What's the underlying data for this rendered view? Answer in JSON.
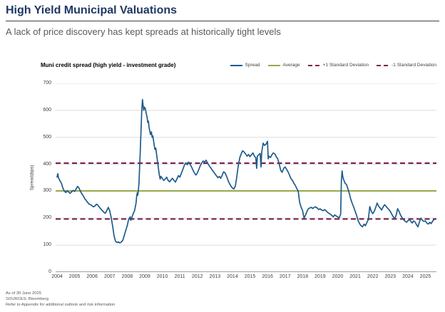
{
  "page": {
    "title": "High Yield Municipal Valuations",
    "subtitle": "A lack of price discovery has kept spreads at historically tight levels"
  },
  "colors": {
    "title_navy": "#1F3864",
    "spread_blue": "#1F5C8B",
    "average_green": "#97A94E",
    "std_dev_maroon": "#7C1E4E",
    "gridline": "#DEDEDE",
    "axis_line": "#9E9E9E",
    "tick_text": "#404040"
  },
  "footer": {
    "as_of": "As of 30 June 2025",
    "sources": "SOURCES: Bloomberg",
    "disclaimer": "Refer to Appendix for additional outlook and risk information"
  },
  "chart_data": {
    "type": "line",
    "title": "Muni credit spread (high yield - investment grade)",
    "xlabel": "",
    "ylabel": "Spread(bps)",
    "xlim": [
      2004,
      2025.55
    ],
    "ylim": [
      0,
      700
    ],
    "yticks": [
      0,
      100,
      200,
      300,
      400,
      500,
      600,
      700
    ],
    "xticks": [
      2004,
      2005,
      2006,
      2007,
      2008,
      2009,
      2010,
      2011,
      2012,
      2013,
      2014,
      2015,
      2016,
      2017,
      2018,
      2019,
      2020,
      2021,
      2022,
      2023,
      2024,
      2025
    ],
    "grid": true,
    "legend_position": "top-right",
    "legend": [
      {
        "label": "Spread",
        "color": "#1F5C8B",
        "style": "solid"
      },
      {
        "label": "Average",
        "color": "#97A94E",
        "style": "solid"
      },
      {
        "label": "+1 Standard Deviation",
        "color": "#7C1E4E",
        "style": "dashed"
      },
      {
        "label": "-1 Standard Deviation",
        "color": "#7C1E4E",
        "style": "dashed"
      }
    ],
    "reference_lines": {
      "average": 301,
      "plus_1_sd": 404,
      "minus_1_sd": 197
    },
    "series": [
      {
        "name": "Average",
        "color": "#97A94E",
        "style": "solid",
        "width": 2,
        "value": 301
      },
      {
        "name": "+1 Standard Deviation",
        "color": "#7C1E4E",
        "style": "dashed",
        "width": 2.2,
        "value": 404
      },
      {
        "name": "-1 Standard Deviation",
        "color": "#7C1E4E",
        "style": "dashed",
        "width": 2.2,
        "value": 197
      },
      {
        "name": "Spread",
        "color": "#1F5C8B",
        "style": "solid",
        "width": 1.7,
        "points": [
          [
            2004.0,
            352
          ],
          [
            2004.04,
            365
          ],
          [
            2004.08,
            350
          ],
          [
            2004.17,
            338
          ],
          [
            2004.25,
            330
          ],
          [
            2004.33,
            312
          ],
          [
            2004.42,
            300
          ],
          [
            2004.5,
            295
          ],
          [
            2004.58,
            302
          ],
          [
            2004.67,
            296
          ],
          [
            2004.75,
            292
          ],
          [
            2004.83,
            298
          ],
          [
            2004.92,
            303
          ],
          [
            2005.0,
            299
          ],
          [
            2005.08,
            308
          ],
          [
            2005.17,
            318
          ],
          [
            2005.25,
            312
          ],
          [
            2005.33,
            300
          ],
          [
            2005.42,
            290
          ],
          [
            2005.5,
            282
          ],
          [
            2005.58,
            272
          ],
          [
            2005.67,
            265
          ],
          [
            2005.75,
            258
          ],
          [
            2005.83,
            252
          ],
          [
            2005.92,
            250
          ],
          [
            2006.0,
            246
          ],
          [
            2006.08,
            242
          ],
          [
            2006.17,
            246
          ],
          [
            2006.25,
            252
          ],
          [
            2006.33,
            248
          ],
          [
            2006.42,
            240
          ],
          [
            2006.5,
            234
          ],
          [
            2006.58,
            228
          ],
          [
            2006.67,
            222
          ],
          [
            2006.75,
            218
          ],
          [
            2006.83,
            228
          ],
          [
            2006.92,
            240
          ],
          [
            2007.0,
            228
          ],
          [
            2007.08,
            205
          ],
          [
            2007.17,
            170
          ],
          [
            2007.25,
            135
          ],
          [
            2007.33,
            115
          ],
          [
            2007.42,
            110
          ],
          [
            2007.5,
            112
          ],
          [
            2007.58,
            108
          ],
          [
            2007.67,
            112
          ],
          [
            2007.75,
            118
          ],
          [
            2007.83,
            135
          ],
          [
            2007.92,
            155
          ],
          [
            2008.0,
            172
          ],
          [
            2008.08,
            195
          ],
          [
            2008.17,
            205
          ],
          [
            2008.21,
            192
          ],
          [
            2008.25,
            200
          ],
          [
            2008.33,
            215
          ],
          [
            2008.42,
            228
          ],
          [
            2008.5,
            255
          ],
          [
            2008.54,
            282
          ],
          [
            2008.58,
            295
          ],
          [
            2008.6,
            285
          ],
          [
            2008.63,
            300
          ],
          [
            2008.67,
            330
          ],
          [
            2008.71,
            390
          ],
          [
            2008.75,
            455
          ],
          [
            2008.79,
            530
          ],
          [
            2008.83,
            600
          ],
          [
            2008.87,
            640
          ],
          [
            2008.9,
            622
          ],
          [
            2008.94,
            600
          ],
          [
            2008.98,
            612
          ],
          [
            2009.04,
            605
          ],
          [
            2009.08,
            590
          ],
          [
            2009.13,
            575
          ],
          [
            2009.17,
            555
          ],
          [
            2009.21,
            560
          ],
          [
            2009.25,
            535
          ],
          [
            2009.33,
            510
          ],
          [
            2009.38,
            520
          ],
          [
            2009.42,
            500
          ],
          [
            2009.46,
            505
          ],
          [
            2009.5,
            488
          ],
          [
            2009.54,
            470
          ],
          [
            2009.58,
            455
          ],
          [
            2009.63,
            460
          ],
          [
            2009.67,
            440
          ],
          [
            2009.75,
            400
          ],
          [
            2009.79,
            380
          ],
          [
            2009.83,
            360
          ],
          [
            2009.88,
            345
          ],
          [
            2009.92,
            355
          ],
          [
            2010.0,
            348
          ],
          [
            2010.08,
            340
          ],
          [
            2010.17,
            345
          ],
          [
            2010.25,
            352
          ],
          [
            2010.33,
            340
          ],
          [
            2010.42,
            335
          ],
          [
            2010.5,
            342
          ],
          [
            2010.58,
            348
          ],
          [
            2010.67,
            340
          ],
          [
            2010.75,
            334
          ],
          [
            2010.83,
            345
          ],
          [
            2010.92,
            358
          ],
          [
            2011.0,
            352
          ],
          [
            2011.08,
            365
          ],
          [
            2011.17,
            380
          ],
          [
            2011.25,
            395
          ],
          [
            2011.33,
            405
          ],
          [
            2011.42,
            398
          ],
          [
            2011.5,
            408
          ],
          [
            2011.58,
            400
          ],
          [
            2011.67,
            390
          ],
          [
            2011.75,
            378
          ],
          [
            2011.83,
            368
          ],
          [
            2011.92,
            360
          ],
          [
            2012.0,
            368
          ],
          [
            2012.08,
            380
          ],
          [
            2012.17,
            395
          ],
          [
            2012.25,
            405
          ],
          [
            2012.33,
            412
          ],
          [
            2012.42,
            408
          ],
          [
            2012.5,
            415
          ],
          [
            2012.58,
            405
          ],
          [
            2012.67,
            395
          ],
          [
            2012.75,
            388
          ],
          [
            2012.83,
            380
          ],
          [
            2012.92,
            372
          ],
          [
            2013.0,
            365
          ],
          [
            2013.08,
            358
          ],
          [
            2013.17,
            350
          ],
          [
            2013.25,
            355
          ],
          [
            2013.33,
            348
          ],
          [
            2013.42,
            360
          ],
          [
            2013.5,
            372
          ],
          [
            2013.58,
            368
          ],
          [
            2013.67,
            355
          ],
          [
            2013.75,
            340
          ],
          [
            2013.83,
            328
          ],
          [
            2013.92,
            318
          ],
          [
            2014.0,
            312
          ],
          [
            2014.08,
            308
          ],
          [
            2014.17,
            320
          ],
          [
            2014.25,
            355
          ],
          [
            2014.33,
            395
          ],
          [
            2014.42,
            425
          ],
          [
            2014.5,
            438
          ],
          [
            2014.58,
            450
          ],
          [
            2014.67,
            445
          ],
          [
            2014.75,
            438
          ],
          [
            2014.83,
            430
          ],
          [
            2014.92,
            436
          ],
          [
            2015.0,
            428
          ],
          [
            2015.08,
            435
          ],
          [
            2015.17,
            442
          ],
          [
            2015.25,
            430
          ],
          [
            2015.33,
            425
          ],
          [
            2015.38,
            385
          ],
          [
            2015.42,
            430
          ],
          [
            2015.5,
            435
          ],
          [
            2015.58,
            440
          ],
          [
            2015.63,
            390
          ],
          [
            2015.67,
            445
          ],
          [
            2015.75,
            478
          ],
          [
            2015.83,
            470
          ],
          [
            2015.92,
            475
          ],
          [
            2016.0,
            485
          ],
          [
            2016.04,
            420
          ],
          [
            2016.08,
            430
          ],
          [
            2016.17,
            425
          ],
          [
            2016.25,
            435
          ],
          [
            2016.33,
            442
          ],
          [
            2016.42,
            438
          ],
          [
            2016.5,
            428
          ],
          [
            2016.58,
            420
          ],
          [
            2016.67,
            400
          ],
          [
            2016.75,
            378
          ],
          [
            2016.83,
            370
          ],
          [
            2016.92,
            385
          ],
          [
            2017.0,
            390
          ],
          [
            2017.08,
            382
          ],
          [
            2017.17,
            372
          ],
          [
            2017.25,
            360
          ],
          [
            2017.33,
            348
          ],
          [
            2017.42,
            340
          ],
          [
            2017.5,
            330
          ],
          [
            2017.58,
            322
          ],
          [
            2017.67,
            310
          ],
          [
            2017.75,
            300
          ],
          [
            2017.83,
            260
          ],
          [
            2017.92,
            240
          ],
          [
            2018.0,
            228
          ],
          [
            2018.08,
            200
          ],
          [
            2018.17,
            212
          ],
          [
            2018.25,
            225
          ],
          [
            2018.33,
            235
          ],
          [
            2018.42,
            238
          ],
          [
            2018.5,
            240
          ],
          [
            2018.58,
            236
          ],
          [
            2018.67,
            240
          ],
          [
            2018.75,
            242
          ],
          [
            2018.83,
            238
          ],
          [
            2018.92,
            232
          ],
          [
            2019.0,
            235
          ],
          [
            2019.08,
            230
          ],
          [
            2019.17,
            228
          ],
          [
            2019.25,
            232
          ],
          [
            2019.33,
            228
          ],
          [
            2019.42,
            222
          ],
          [
            2019.5,
            218
          ],
          [
            2019.58,
            215
          ],
          [
            2019.67,
            210
          ],
          [
            2019.75,
            205
          ],
          [
            2019.83,
            212
          ],
          [
            2019.92,
            208
          ],
          [
            2020.0,
            205
          ],
          [
            2020.08,
            200
          ],
          [
            2020.17,
            215
          ],
          [
            2020.21,
            340
          ],
          [
            2020.25,
            375
          ],
          [
            2020.29,
            355
          ],
          [
            2020.33,
            345
          ],
          [
            2020.42,
            330
          ],
          [
            2020.5,
            325
          ],
          [
            2020.58,
            310
          ],
          [
            2020.67,
            290
          ],
          [
            2020.75,
            270
          ],
          [
            2020.83,
            255
          ],
          [
            2020.92,
            240
          ],
          [
            2021.0,
            225
          ],
          [
            2021.08,
            210
          ],
          [
            2021.17,
            190
          ],
          [
            2021.25,
            180
          ],
          [
            2021.33,
            172
          ],
          [
            2021.42,
            168
          ],
          [
            2021.5,
            178
          ],
          [
            2021.58,
            172
          ],
          [
            2021.67,
            185
          ],
          [
            2021.75,
            195
          ],
          [
            2021.83,
            243
          ],
          [
            2021.92,
            225
          ],
          [
            2022.0,
            217
          ],
          [
            2022.08,
            225
          ],
          [
            2022.17,
            240
          ],
          [
            2022.25,
            256
          ],
          [
            2022.33,
            245
          ],
          [
            2022.42,
            238
          ],
          [
            2022.5,
            230
          ],
          [
            2022.58,
            240
          ],
          [
            2022.67,
            250
          ],
          [
            2022.75,
            245
          ],
          [
            2022.83,
            238
          ],
          [
            2022.92,
            232
          ],
          [
            2023.0,
            225
          ],
          [
            2023.08,
            215
          ],
          [
            2023.17,
            205
          ],
          [
            2023.25,
            198
          ],
          [
            2023.33,
            210
          ],
          [
            2023.42,
            235
          ],
          [
            2023.5,
            225
          ],
          [
            2023.58,
            212
          ],
          [
            2023.67,
            202
          ],
          [
            2023.75,
            195
          ],
          [
            2023.83,
            190
          ],
          [
            2023.92,
            185
          ],
          [
            2024.0,
            190
          ],
          [
            2024.08,
            196
          ],
          [
            2024.17,
            188
          ],
          [
            2024.25,
            182
          ],
          [
            2024.33,
            190
          ],
          [
            2024.42,
            185
          ],
          [
            2024.5,
            175
          ],
          [
            2024.58,
            168
          ],
          [
            2024.67,
            188
          ],
          [
            2024.75,
            200
          ],
          [
            2024.83,
            192
          ],
          [
            2024.92,
            188
          ],
          [
            2025.0,
            190
          ],
          [
            2025.08,
            182
          ],
          [
            2025.17,
            178
          ],
          [
            2025.25,
            185
          ],
          [
            2025.33,
            180
          ],
          [
            2025.42,
            190
          ],
          [
            2025.5,
            195
          ]
        ]
      }
    ]
  }
}
